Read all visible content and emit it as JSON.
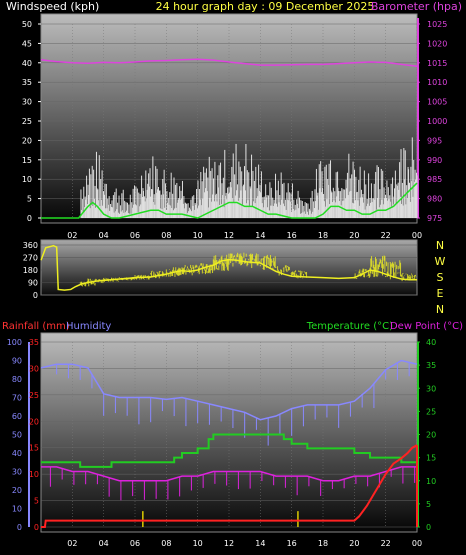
{
  "header": {
    "windspeed_label": "Windspeed (kph)",
    "title": "24 hour graph day : 09 December 2025",
    "barometer_label": "Barometer (hpa)"
  },
  "colors": {
    "wind": "#ffffff",
    "gust": "#ffffff",
    "windavg": "#22dd22",
    "baro": "#dd44dd",
    "dir": "#eeee22",
    "rain": "#ff2222",
    "humidity": "#8888ff",
    "temp": "#22cc22",
    "dew": "#dd22dd",
    "title": "#ffff44",
    "panel_top": "#bbbbbb",
    "panel_bottom": "#000000"
  },
  "compass": [
    "N",
    "W",
    "S",
    "E",
    "N"
  ],
  "bottom_labels": {
    "rainfall": "Rainfall (mm)",
    "humidity": "Humidity",
    "temperature": "Temperature (°C)",
    "dewpoint": "Dew Point (°C)"
  },
  "chart_data": [
    {
      "type": "line",
      "name": "wind-baro",
      "x_ticks": [
        "02",
        "04",
        "06",
        "08",
        "10",
        "12",
        "14",
        "16",
        "18",
        "20",
        "22",
        "00"
      ],
      "left_axis": {
        "label": "Windspeed (kph)",
        "ticks": [
          "0",
          "5",
          "10",
          "15",
          "20",
          "25",
          "30",
          "35",
          "40",
          "45",
          "50"
        ],
        "ylim": [
          0,
          50
        ]
      },
      "right_axis": {
        "label": "Barometer (hpa)",
        "ticks": [
          "975",
          "980",
          "985",
          "990",
          "995",
          "1000",
          "1005",
          "1010",
          "1015",
          "1020",
          "1025"
        ],
        "ylim": [
          975,
          1025
        ]
      },
      "gust_envelope": [
        [
          2.6,
          11
        ],
        [
          3,
          16
        ],
        [
          3.5,
          18
        ],
        [
          4,
          15
        ],
        [
          4.4,
          9
        ],
        [
          5,
          9
        ],
        [
          5.5,
          6
        ],
        [
          6,
          9
        ],
        [
          6.8,
          18
        ],
        [
          7.5,
          16
        ],
        [
          8,
          13
        ],
        [
          8.6,
          14
        ],
        [
          9,
          12
        ],
        [
          9.5,
          7
        ],
        [
          10,
          10
        ],
        [
          10.5,
          17
        ],
        [
          11,
          15
        ],
        [
          11.6,
          19
        ],
        [
          12,
          16
        ],
        [
          12.6,
          22
        ],
        [
          13.2,
          20
        ],
        [
          13.7,
          16
        ],
        [
          14.2,
          13
        ],
        [
          14.7,
          9
        ],
        [
          15.2,
          14
        ],
        [
          15.7,
          11
        ],
        [
          16.2,
          9
        ],
        [
          17,
          5
        ],
        [
          17.8,
          16
        ],
        [
          18.4,
          19
        ],
        [
          19,
          17
        ],
        [
          19.6,
          18
        ],
        [
          20.2,
          16
        ],
        [
          20.8,
          14
        ],
        [
          21.4,
          14
        ],
        [
          22,
          13
        ],
        [
          22.6,
          16
        ],
        [
          23,
          20
        ],
        [
          23.5,
          25
        ],
        [
          24,
          32
        ]
      ],
      "speed_envelope": [
        [
          2.6,
          3
        ],
        [
          3,
          7
        ],
        [
          3.5,
          8
        ],
        [
          4,
          6
        ],
        [
          4.4,
          3
        ],
        [
          5,
          3
        ],
        [
          5.5,
          2
        ],
        [
          6,
          4
        ],
        [
          6.8,
          9
        ],
        [
          7.5,
          8
        ],
        [
          8,
          6
        ],
        [
          8.6,
          7
        ],
        [
          9,
          5
        ],
        [
          9.5,
          3
        ],
        [
          10,
          4
        ],
        [
          10.5,
          8
        ],
        [
          11,
          7
        ],
        [
          11.6,
          9
        ],
        [
          12,
          8
        ],
        [
          12.6,
          11
        ],
        [
          13.2,
          10
        ],
        [
          13.7,
          8
        ],
        [
          14.2,
          6
        ],
        [
          14.7,
          4
        ],
        [
          15.2,
          6
        ],
        [
          15.7,
          5
        ],
        [
          16.2,
          4
        ],
        [
          17,
          2
        ],
        [
          17.8,
          8
        ],
        [
          18.4,
          9
        ],
        [
          19,
          8
        ],
        [
          19.6,
          9
        ],
        [
          20.2,
          7
        ],
        [
          20.8,
          6
        ],
        [
          21.4,
          6
        ],
        [
          22,
          6
        ],
        [
          22.6,
          8
        ],
        [
          23,
          10
        ],
        [
          23.5,
          13
        ],
        [
          24,
          16
        ]
      ],
      "avg_wind": [
        [
          0,
          0
        ],
        [
          2.4,
          0
        ],
        [
          2.6,
          1
        ],
        [
          3,
          3
        ],
        [
          3.3,
          4
        ],
        [
          3.6,
          3
        ],
        [
          4,
          1
        ],
        [
          4.5,
          0
        ],
        [
          5,
          0
        ],
        [
          6,
          1
        ],
        [
          7,
          2
        ],
        [
          7.5,
          2
        ],
        [
          8,
          1
        ],
        [
          9,
          1
        ],
        [
          10,
          0
        ],
        [
          10.5,
          1
        ],
        [
          11,
          2
        ],
        [
          11.5,
          3
        ],
        [
          12,
          4
        ],
        [
          12.5,
          4
        ],
        [
          13,
          3
        ],
        [
          13.5,
          3
        ],
        [
          14,
          2
        ],
        [
          14.5,
          1
        ],
        [
          15,
          1
        ],
        [
          16,
          0
        ],
        [
          17,
          0
        ],
        [
          17.5,
          0
        ],
        [
          18,
          1
        ],
        [
          18.5,
          3
        ],
        [
          19,
          3
        ],
        [
          19.5,
          2
        ],
        [
          20,
          2
        ],
        [
          20.5,
          1
        ],
        [
          21,
          1
        ],
        [
          21.5,
          2
        ],
        [
          22,
          2
        ],
        [
          22.5,
          3
        ],
        [
          23,
          5
        ],
        [
          23.5,
          7
        ],
        [
          24,
          9
        ]
      ],
      "barometer": [
        [
          0,
          1015.8
        ],
        [
          1,
          1015.3
        ],
        [
          2,
          1015.0
        ],
        [
          3,
          1014.9
        ],
        [
          4,
          1015.1
        ],
        [
          5,
          1015.0
        ],
        [
          6,
          1015.2
        ],
        [
          7,
          1015.5
        ],
        [
          8,
          1015.6
        ],
        [
          9,
          1015.8
        ],
        [
          10,
          1015.9
        ],
        [
          11,
          1015.7
        ],
        [
          12,
          1015.2
        ],
        [
          13,
          1014.8
        ],
        [
          14,
          1014.4
        ],
        [
          15,
          1014.4
        ],
        [
          16,
          1014.5
        ],
        [
          17,
          1014.6
        ],
        [
          18,
          1014.6
        ],
        [
          19,
          1014.8
        ],
        [
          20,
          1015.0
        ],
        [
          21,
          1015.2
        ],
        [
          22,
          1015.1
        ],
        [
          23,
          1014.6
        ],
        [
          24,
          1014.1
        ]
      ]
    },
    {
      "type": "line",
      "name": "wind-direction",
      "left_axis": {
        "ticks": [
          "0",
          "90",
          "180",
          "270",
          "360"
        ],
        "ylim": [
          0,
          360
        ]
      },
      "direction": [
        [
          0,
          250
        ],
        [
          0.3,
          340
        ],
        [
          0.8,
          355
        ],
        [
          1,
          345
        ],
        [
          1.1,
          40
        ],
        [
          1.5,
          35
        ],
        [
          1.9,
          40
        ],
        [
          2.2,
          60
        ],
        [
          2.6,
          80
        ],
        [
          3,
          90
        ],
        [
          3.5,
          100
        ],
        [
          4,
          105
        ],
        [
          4.5,
          110
        ],
        [
          5,
          115
        ],
        [
          5.5,
          120
        ],
        [
          6,
          125
        ],
        [
          7,
          130
        ],
        [
          7.5,
          140
        ],
        [
          8,
          150
        ],
        [
          8.5,
          165
        ],
        [
          9,
          175
        ],
        [
          9.5,
          170
        ],
        [
          10,
          180
        ],
        [
          10.5,
          200
        ],
        [
          11,
          215
        ],
        [
          11.5,
          245
        ],
        [
          12,
          255
        ],
        [
          12.5,
          250
        ],
        [
          13,
          240
        ],
        [
          13.5,
          235
        ],
        [
          14,
          230
        ],
        [
          14.5,
          200
        ],
        [
          15,
          170
        ],
        [
          15.5,
          150
        ],
        [
          16,
          135
        ],
        [
          17,
          130
        ],
        [
          18,
          125
        ],
        [
          19,
          120
        ],
        [
          20,
          125
        ],
        [
          20.5,
          150
        ],
        [
          21,
          180
        ],
        [
          21.5,
          170
        ],
        [
          22,
          150
        ],
        [
          22.5,
          130
        ],
        [
          23,
          115
        ],
        [
          23.5,
          110
        ],
        [
          24,
          110
        ]
      ],
      "direction_spread": [
        [
          2.5,
          60,
          100
        ],
        [
          3,
          80,
          120
        ],
        [
          4,
          95,
          125
        ],
        [
          5,
          105,
          135
        ],
        [
          6,
          110,
          145
        ],
        [
          7,
          120,
          175
        ],
        [
          8,
          130,
          200
        ],
        [
          9,
          140,
          220
        ],
        [
          10,
          150,
          230
        ],
        [
          11,
          170,
          290
        ],
        [
          12,
          200,
          310
        ],
        [
          13,
          190,
          300
        ],
        [
          14,
          180,
          290
        ],
        [
          15,
          140,
          220
        ],
        [
          16,
          120,
          180
        ],
        [
          20,
          110,
          190
        ],
        [
          21,
          120,
          290
        ],
        [
          22,
          110,
          250
        ],
        [
          23,
          100,
          160
        ]
      ]
    },
    {
      "type": "line",
      "name": "rain-humidity-temp",
      "x_ticks": [
        "02",
        "04",
        "06",
        "08",
        "10",
        "12",
        "14",
        "16",
        "18",
        "20",
        "22",
        "00"
      ],
      "rain_axis": {
        "label": "Rainfall (mm)",
        "ticks": [
          "0",
          "5",
          "10",
          "15",
          "20",
          "25",
          "30",
          "35"
        ],
        "ylim": [
          0,
          35
        ]
      },
      "humidity_axis": {
        "label": "Humidity",
        "ticks": [
          "0",
          "10",
          "20",
          "30",
          "40",
          "50",
          "60",
          "70",
          "80",
          "90",
          "100"
        ],
        "ylim": [
          0,
          100
        ]
      },
      "temp_axis": {
        "label": "Temperature (°C)",
        "ticks": [
          "0",
          "5",
          "10",
          "15",
          "20",
          "25",
          "30",
          "35",
          "40"
        ],
        "ylim": [
          0,
          40
        ]
      },
      "rainfall": [
        [
          0,
          0
        ],
        [
          0.25,
          0
        ],
        [
          0.3,
          1.2
        ],
        [
          20,
          1.2
        ],
        [
          20.3,
          2
        ],
        [
          20.8,
          4
        ],
        [
          21.2,
          6
        ],
        [
          21.6,
          8
        ],
        [
          22,
          10
        ],
        [
          22.5,
          12
        ],
        [
          23,
          13
        ],
        [
          23.4,
          14
        ],
        [
          23.7,
          15
        ],
        [
          24,
          15.5
        ]
      ],
      "rain_rate_spikes": [
        [
          6.5,
          3
        ],
        [
          16.4,
          3
        ]
      ],
      "humidity": [
        [
          0,
          86
        ],
        [
          1,
          88
        ],
        [
          2,
          88
        ],
        [
          3,
          86
        ],
        [
          4,
          72
        ],
        [
          5,
          70
        ],
        [
          6,
          70
        ],
        [
          7,
          70
        ],
        [
          8,
          69
        ],
        [
          9,
          70
        ],
        [
          10,
          68
        ],
        [
          11,
          66
        ],
        [
          12,
          64
        ],
        [
          13,
          62
        ],
        [
          14,
          58
        ],
        [
          15,
          60
        ],
        [
          16,
          64
        ],
        [
          17,
          66
        ],
        [
          18,
          66
        ],
        [
          19,
          66
        ],
        [
          20,
          68
        ],
        [
          21,
          75
        ],
        [
          22,
          85
        ],
        [
          23,
          90
        ],
        [
          24,
          88
        ]
      ],
      "temperature": [
        [
          0,
          14
        ],
        [
          2,
          14
        ],
        [
          2.5,
          13
        ],
        [
          4,
          13
        ],
        [
          4.5,
          14
        ],
        [
          8,
          14
        ],
        [
          8.5,
          15
        ],
        [
          9,
          16
        ],
        [
          10,
          17
        ],
        [
          10.7,
          19
        ],
        [
          11,
          20
        ],
        [
          15,
          20
        ],
        [
          15.5,
          19
        ],
        [
          16,
          18
        ],
        [
          17,
          17
        ],
        [
          18,
          17
        ],
        [
          19,
          17
        ],
        [
          20,
          16
        ],
        [
          21,
          15
        ],
        [
          22,
          15
        ],
        [
          23,
          14
        ],
        [
          24,
          14
        ]
      ],
      "dewpoint": [
        [
          0,
          13
        ],
        [
          1,
          13
        ],
        [
          2,
          12
        ],
        [
          3,
          12
        ],
        [
          4,
          11
        ],
        [
          5,
          10
        ],
        [
          6,
          10
        ],
        [
          7,
          10
        ],
        [
          8,
          10
        ],
        [
          9,
          11
        ],
        [
          10,
          11
        ],
        [
          11,
          12
        ],
        [
          12,
          12
        ],
        [
          13,
          12
        ],
        [
          14,
          12
        ],
        [
          15,
          11
        ],
        [
          16,
          11
        ],
        [
          17,
          11
        ],
        [
          18,
          10
        ],
        [
          19,
          10
        ],
        [
          20,
          11
        ],
        [
          21,
          11
        ],
        [
          22,
          12
        ],
        [
          23,
          13
        ],
        [
          24,
          13
        ]
      ]
    }
  ]
}
